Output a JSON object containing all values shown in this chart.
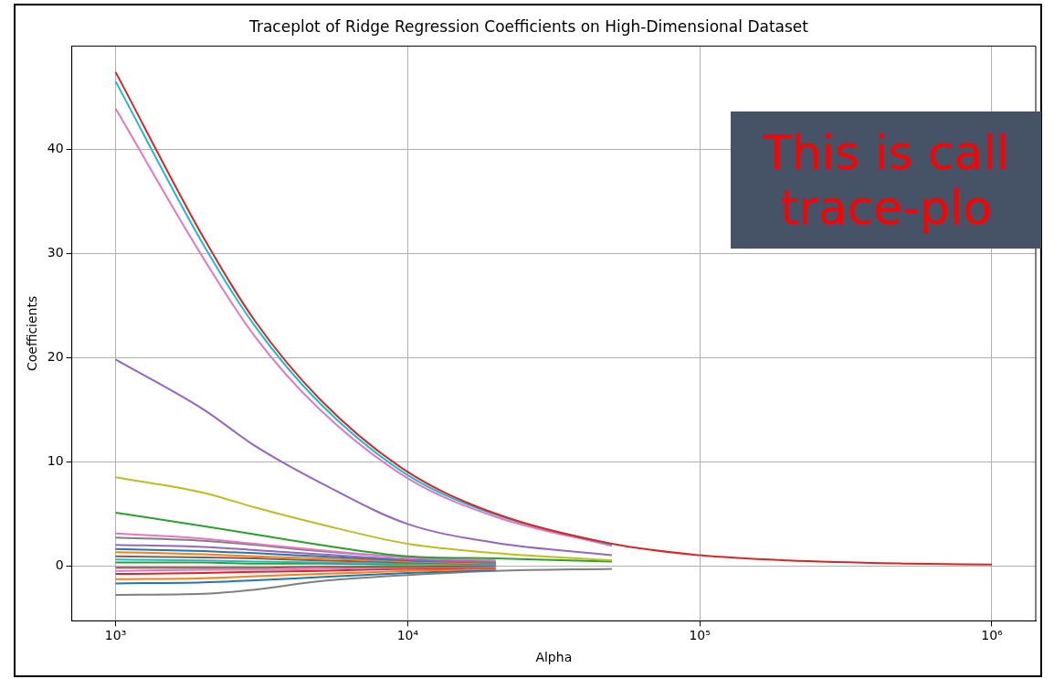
{
  "chart_data": {
    "type": "line",
    "title": "Traceplot of Ridge Regression Coefficients on High-Dimensional Dataset",
    "xlabel": "Alpha",
    "ylabel": "Coefficients",
    "x": [
      1000,
      2000,
      3000,
      5000,
      10000,
      20000,
      50000,
      100000,
      200000,
      500000,
      1000000
    ],
    "xlim": [
      708,
      1413000
    ],
    "ylim": [
      -5.3,
      49.9
    ],
    "xticks": [
      {
        "value": 1000,
        "label": "10³"
      },
      {
        "value": 10000,
        "label": "10⁴"
      },
      {
        "value": 100000,
        "label": "10⁵"
      },
      {
        "value": 1000000,
        "label": "10⁶"
      }
    ],
    "yticks": [
      0,
      10,
      20,
      30,
      40
    ],
    "log": "x",
    "grid": true,
    "legend": false,
    "marker": "none",
    "line_style": "solid",
    "annotations": [
      "This is call trace-plo"
    ],
    "series": [
      {
        "color": "#d62728",
        "values": [
          47.4,
          31.5,
          23.5,
          16,
          9,
          5,
          2.1,
          1.0,
          0.5,
          0.2,
          0.1
        ]
      },
      {
        "color": "#17becf",
        "x": [
          1000,
          2000,
          3000,
          5000,
          10000,
          20000,
          50000
        ],
        "values": [
          46.5,
          30.8,
          23,
          15.6,
          8.7,
          4.9,
          2.0
        ]
      },
      {
        "color": "#e377c2",
        "x": [
          1000,
          2000,
          3000,
          5000,
          10000,
          20000,
          50000
        ],
        "values": [
          43.9,
          29.5,
          22,
          15,
          8.4,
          4.7,
          1.9
        ]
      },
      {
        "color": "#9467bd",
        "x": [
          1000,
          2000,
          3000,
          5000,
          10000,
          20000,
          50000
        ],
        "values": [
          19.8,
          15,
          11.5,
          8,
          4,
          2.2,
          1.0
        ]
      },
      {
        "color": "#bcbd22",
        "x": [
          1000,
          2000,
          3000,
          5000,
          10000,
          20000,
          50000
        ],
        "values": [
          8.5,
          7,
          5.6,
          4,
          2.1,
          1.2,
          0.5
        ]
      },
      {
        "color": "#2ca02c",
        "x": [
          1000,
          2000,
          3000,
          5000,
          10000,
          20000,
          50000
        ],
        "values": [
          5.1,
          3.8,
          3,
          2,
          0.9,
          0.7,
          0.4
        ]
      },
      {
        "color": "#e377c2",
        "x": [
          1000,
          2000,
          3000,
          5000,
          10000,
          20000
        ],
        "values": [
          3.1,
          2.6,
          2.1,
          1.5,
          0.8,
          0.5
        ]
      },
      {
        "color": "#7f7f7f",
        "x": [
          1000,
          2000,
          3000,
          5000,
          10000,
          20000
        ],
        "values": [
          2.7,
          2.4,
          2.0,
          1.4,
          0.8,
          0.4
        ]
      },
      {
        "color": "#9467bd",
        "x": [
          1000,
          2000,
          3000,
          5000,
          10000,
          20000
        ],
        "values": [
          2.0,
          1.8,
          1.5,
          1.1,
          0.6,
          0.3
        ]
      },
      {
        "color": "#1f77b4",
        "x": [
          1000,
          2000,
          3000,
          5000,
          10000,
          20000
        ],
        "values": [
          1.6,
          1.4,
          1.2,
          0.9,
          0.5,
          0.3
        ]
      },
      {
        "color": "#ff7f0e",
        "x": [
          1000,
          2000,
          3000,
          5000,
          10000,
          20000
        ],
        "values": [
          1.3,
          1.1,
          0.9,
          0.7,
          0.4,
          0.2
        ]
      },
      {
        "color": "#8c564b",
        "x": [
          1000,
          2000,
          3000,
          5000,
          10000,
          20000
        ],
        "values": [
          0.9,
          0.8,
          0.7,
          0.5,
          0.3,
          0.2
        ]
      },
      {
        "color": "#17becf",
        "x": [
          1000,
          2000,
          3000,
          5000,
          10000,
          20000
        ],
        "values": [
          0.6,
          0.5,
          0.4,
          0.3,
          0.2,
          0.1
        ]
      },
      {
        "color": "#2ca02c",
        "x": [
          1000,
          2000,
          3000,
          5000,
          10000,
          20000
        ],
        "values": [
          0.3,
          0.3,
          0.2,
          0.2,
          0.1,
          0.1
        ]
      },
      {
        "color": "#8c564b",
        "x": [
          1000,
          2000,
          3000,
          5000,
          10000,
          20000
        ],
        "values": [
          -0.2,
          -0.2,
          -0.2,
          -0.1,
          -0.1,
          0.0
        ]
      },
      {
        "color": "#e377c2",
        "x": [
          1000,
          2000,
          3000,
          5000,
          10000,
          20000
        ],
        "values": [
          -0.5,
          -0.4,
          -0.4,
          -0.3,
          -0.2,
          -0.1
        ]
      },
      {
        "color": "#d62728",
        "x": [
          1000,
          2000,
          3000,
          5000,
          10000,
          20000
        ],
        "values": [
          -0.8,
          -0.7,
          -0.6,
          -0.5,
          -0.3,
          -0.2
        ]
      },
      {
        "color": "#ff7f0e",
        "x": [
          1000,
          2000,
          3000,
          5000,
          10000,
          20000
        ],
        "values": [
          -1.3,
          -1.2,
          -1.0,
          -0.8,
          -0.5,
          -0.3
        ]
      },
      {
        "color": "#1f77b4",
        "x": [
          1000,
          2000,
          3000,
          5000,
          10000,
          20000
        ],
        "values": [
          -1.7,
          -1.6,
          -1.4,
          -1.1,
          -0.7,
          -0.4
        ]
      },
      {
        "color": "#7f7f7f",
        "x": [
          1000,
          2000,
          3000,
          5000,
          10000,
          20000,
          50000
        ],
        "values": [
          -2.8,
          -2.7,
          -2.3,
          -1.5,
          -0.9,
          -0.5,
          -0.3
        ]
      }
    ]
  }
}
